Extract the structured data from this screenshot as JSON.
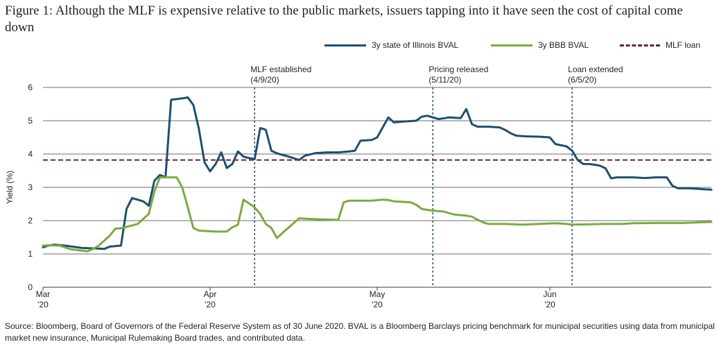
{
  "title": "Figure 1: Although the MLF is expensive relative to the public markets, issuers tapping into it have seen the cost of capital come down",
  "source": "Source: Bloomberg, Board of Governors of the Federal Reserve System as of 30 June 2020. BVAL is a Bloomberg Barclays pricing benchmark for municipal securities using data from municipal market new insurance, Municipal Rulemaking Board trades, and  contributed data.",
  "colors": {
    "illinois": "#1d4f72",
    "bbb": "#7aab3e",
    "mlf": "#6d1f3d",
    "grid": "#3a3a3a",
    "event": "#1d4f72"
  },
  "chart_data": {
    "type": "line",
    "ylabel": "Yield (%)",
    "ylim": [
      0,
      6
    ],
    "yticks": [
      0,
      1,
      2,
      3,
      4,
      5,
      6
    ],
    "xlim": [
      "2020-03-02",
      "2020-06-30"
    ],
    "xticks": [
      {
        "date": "2020-03-02",
        "line1": "Mar",
        "line2": "'20"
      },
      {
        "date": "2020-04-01",
        "line1": "Apr",
        "line2": "'20"
      },
      {
        "date": "2020-05-01",
        "line1": "May",
        "line2": "'20"
      },
      {
        "date": "2020-06-01",
        "line1": "Jun",
        "line2": "'20"
      }
    ],
    "grid": true,
    "legend_position": "top-right",
    "events": [
      {
        "date": "2020-04-09",
        "label1": "MLF established",
        "label2": "(4/9/20)"
      },
      {
        "date": "2020-05-11",
        "label1": "Pricing released",
        "label2": "(5/11/20)"
      },
      {
        "date": "2020-06-05",
        "label1": "Loan extended",
        "label2": "(6/5/20)"
      }
    ],
    "reference_lines": [
      {
        "name": "MLF loan",
        "y": 3.82
      }
    ],
    "series": [
      {
        "name": "3y state of Illinois BVAL",
        "points": [
          [
            "2020-03-02",
            1.2
          ],
          [
            "2020-03-03",
            1.25
          ],
          [
            "2020-03-04",
            1.28
          ],
          [
            "2020-03-06",
            1.25
          ],
          [
            "2020-03-09",
            1.18
          ],
          [
            "2020-03-12",
            1.16
          ],
          [
            "2020-03-13",
            1.15
          ],
          [
            "2020-03-14",
            1.22
          ],
          [
            "2020-03-16",
            1.25
          ],
          [
            "2020-03-17",
            2.35
          ],
          [
            "2020-03-18",
            2.68
          ],
          [
            "2020-03-20",
            2.58
          ],
          [
            "2020-03-21",
            2.45
          ],
          [
            "2020-03-22",
            3.2
          ],
          [
            "2020-03-23",
            3.37
          ],
          [
            "2020-03-24",
            3.3
          ],
          [
            "2020-03-25",
            5.63
          ],
          [
            "2020-03-27",
            5.67
          ],
          [
            "2020-03-28",
            5.7
          ],
          [
            "2020-03-29",
            5.47
          ],
          [
            "2020-03-30",
            4.75
          ],
          [
            "2020-03-31",
            3.75
          ],
          [
            "2020-04-01",
            3.48
          ],
          [
            "2020-04-02",
            3.7
          ],
          [
            "2020-04-03",
            4.05
          ],
          [
            "2020-04-04",
            3.58
          ],
          [
            "2020-04-05",
            3.7
          ],
          [
            "2020-04-06",
            4.08
          ],
          [
            "2020-04-07",
            3.92
          ],
          [
            "2020-04-08",
            3.88
          ],
          [
            "2020-04-09",
            3.85
          ],
          [
            "2020-04-10",
            4.78
          ],
          [
            "2020-04-11",
            4.73
          ],
          [
            "2020-04-12",
            4.1
          ],
          [
            "2020-04-13",
            4.02
          ],
          [
            "2020-04-15",
            3.93
          ],
          [
            "2020-04-17",
            3.82
          ],
          [
            "2020-04-18",
            3.95
          ],
          [
            "2020-04-20",
            4.03
          ],
          [
            "2020-04-22",
            4.05
          ],
          [
            "2020-04-24",
            4.05
          ],
          [
            "2020-04-26",
            4.08
          ],
          [
            "2020-04-27",
            4.1
          ],
          [
            "2020-04-28",
            4.4
          ],
          [
            "2020-04-30",
            4.42
          ],
          [
            "2020-05-01",
            4.5
          ],
          [
            "2020-05-03",
            5.1
          ],
          [
            "2020-05-04",
            4.95
          ],
          [
            "2020-05-06",
            4.98
          ],
          [
            "2020-05-08",
            5.0
          ],
          [
            "2020-05-09",
            5.12
          ],
          [
            "2020-05-10",
            5.15
          ],
          [
            "2020-05-12",
            5.05
          ],
          [
            "2020-05-14",
            5.1
          ],
          [
            "2020-05-16",
            5.08
          ],
          [
            "2020-05-17",
            5.35
          ],
          [
            "2020-05-18",
            4.9
          ],
          [
            "2020-05-19",
            4.82
          ],
          [
            "2020-05-21",
            4.82
          ],
          [
            "2020-05-23",
            4.8
          ],
          [
            "2020-05-24",
            4.72
          ],
          [
            "2020-05-25",
            4.62
          ],
          [
            "2020-05-26",
            4.55
          ],
          [
            "2020-05-28",
            4.53
          ],
          [
            "2020-05-30",
            4.52
          ],
          [
            "2020-06-01",
            4.5
          ],
          [
            "2020-06-02",
            4.3
          ],
          [
            "2020-06-04",
            4.23
          ],
          [
            "2020-06-05",
            4.1
          ],
          [
            "2020-06-06",
            3.82
          ],
          [
            "2020-06-07",
            3.7
          ],
          [
            "2020-06-08",
            3.7
          ],
          [
            "2020-06-09",
            3.68
          ],
          [
            "2020-06-10",
            3.65
          ],
          [
            "2020-06-11",
            3.57
          ],
          [
            "2020-06-12",
            3.27
          ],
          [
            "2020-06-13",
            3.3
          ],
          [
            "2020-06-16",
            3.3
          ],
          [
            "2020-06-18",
            3.28
          ],
          [
            "2020-06-20",
            3.3
          ],
          [
            "2020-06-22",
            3.3
          ],
          [
            "2020-06-23",
            3.05
          ],
          [
            "2020-06-24",
            2.97
          ],
          [
            "2020-06-26",
            2.97
          ],
          [
            "2020-06-28",
            2.95
          ],
          [
            "2020-06-30",
            2.93
          ]
        ]
      },
      {
        "name": "3y BBB BVAL",
        "points": [
          [
            "2020-03-02",
            1.25
          ],
          [
            "2020-03-03",
            1.26
          ],
          [
            "2020-03-05",
            1.25
          ],
          [
            "2020-03-07",
            1.14
          ],
          [
            "2020-03-09",
            1.1
          ],
          [
            "2020-03-10",
            1.08
          ],
          [
            "2020-03-11",
            1.15
          ],
          [
            "2020-03-12",
            1.25
          ],
          [
            "2020-03-14",
            1.55
          ],
          [
            "2020-03-15",
            1.76
          ],
          [
            "2020-03-16",
            1.77
          ],
          [
            "2020-03-19",
            1.9
          ],
          [
            "2020-03-21",
            2.2
          ],
          [
            "2020-03-22",
            2.88
          ],
          [
            "2020-03-23",
            3.3
          ],
          [
            "2020-03-25",
            3.3
          ],
          [
            "2020-03-26",
            3.3
          ],
          [
            "2020-03-27",
            3.0
          ],
          [
            "2020-03-28",
            2.4
          ],
          [
            "2020-03-29",
            1.78
          ],
          [
            "2020-03-30",
            1.7
          ],
          [
            "2020-04-02",
            1.67
          ],
          [
            "2020-04-04",
            1.67
          ],
          [
            "2020-04-05",
            1.8
          ],
          [
            "2020-04-06",
            1.88
          ],
          [
            "2020-04-07",
            2.63
          ],
          [
            "2020-04-09",
            2.4
          ],
          [
            "2020-04-10",
            2.2
          ],
          [
            "2020-04-11",
            1.9
          ],
          [
            "2020-04-12",
            1.78
          ],
          [
            "2020-04-13",
            1.48
          ],
          [
            "2020-04-15",
            1.78
          ],
          [
            "2020-04-17",
            2.07
          ],
          [
            "2020-04-19",
            2.05
          ],
          [
            "2020-04-21",
            2.04
          ],
          [
            "2020-04-23",
            2.03
          ],
          [
            "2020-04-24",
            2.02
          ],
          [
            "2020-04-25",
            2.55
          ],
          [
            "2020-04-26",
            2.6
          ],
          [
            "2020-04-28",
            2.6
          ],
          [
            "2020-04-30",
            2.6
          ],
          [
            "2020-05-02",
            2.63
          ],
          [
            "2020-05-03",
            2.62
          ],
          [
            "2020-05-04",
            2.58
          ],
          [
            "2020-05-06",
            2.56
          ],
          [
            "2020-05-07",
            2.55
          ],
          [
            "2020-05-08",
            2.48
          ],
          [
            "2020-05-09",
            2.35
          ],
          [
            "2020-05-11",
            2.3
          ],
          [
            "2020-05-13",
            2.27
          ],
          [
            "2020-05-14",
            2.22
          ],
          [
            "2020-05-15",
            2.18
          ],
          [
            "2020-05-17",
            2.15
          ],
          [
            "2020-05-18",
            2.12
          ],
          [
            "2020-05-19",
            2.03
          ],
          [
            "2020-05-20",
            1.95
          ],
          [
            "2020-05-21",
            1.9
          ],
          [
            "2020-05-24",
            1.9
          ],
          [
            "2020-05-27",
            1.88
          ],
          [
            "2020-05-30",
            1.9
          ],
          [
            "2020-06-02",
            1.92
          ],
          [
            "2020-06-04",
            1.9
          ],
          [
            "2020-06-05",
            1.88
          ],
          [
            "2020-06-08",
            1.89
          ],
          [
            "2020-06-11",
            1.9
          ],
          [
            "2020-06-14",
            1.9
          ],
          [
            "2020-06-16",
            1.92
          ],
          [
            "2020-06-20",
            1.93
          ],
          [
            "2020-06-25",
            1.93
          ],
          [
            "2020-06-28",
            1.95
          ],
          [
            "2020-06-30",
            1.96
          ]
        ]
      }
    ]
  }
}
